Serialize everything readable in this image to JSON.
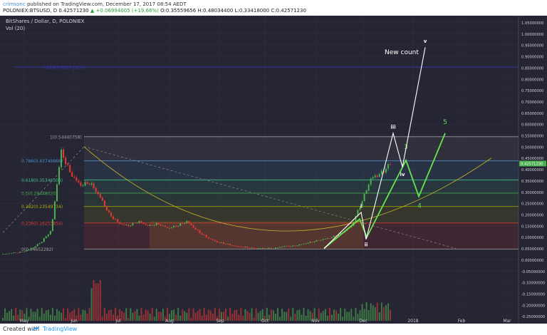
{
  "header": {
    "username": "crimsonc",
    "publish_text": "published on TradingView.com, December 17, 2017 08:54 AEDT",
    "ohlc_prefix": "POLONIEX:BTSUSD, D",
    "ohlc_open": "0.42571230",
    "ohlc_change": "▲ +0.06994005 (+19.66%)",
    "ohlc_rest": "O:0.35559656 H:0.48034400 L:0.33418000 C:0.42571230"
  },
  "chart_data": {
    "type": "candlestick",
    "symbol_label": "BitShares / Dollar, D, POLONIEX",
    "volume_label": "Vol (20)",
    "y_ticks": [
      "1.05000000",
      "1.00000000",
      "0.95000000",
      "0.90000000",
      "0.85000000",
      "0.80000000",
      "0.75000000",
      "0.70000000",
      "0.65000000",
      "0.60000000",
      "0.55000000",
      "0.50000000",
      "0.45000000",
      "0.40000000",
      "0.35000000",
      "0.30000000",
      "0.25000000",
      "0.20000000",
      "0.15000000",
      "0.10000000",
      "0.05000000",
      "0.00000000",
      "-0.05000000",
      "-0.10000000",
      "-0.15000000",
      "-0.20000000",
      "-0.25000000"
    ],
    "x_ticks": [
      "May",
      "Jun",
      "Jul",
      "Aug",
      "Sep",
      "Oct",
      "Nov",
      "Dec",
      "2018",
      "Feb",
      "Mar"
    ],
    "ylim": [
      -0.27,
      1.08
    ],
    "last_price": "0.42571230",
    "fib_levels": [
      {
        "label": "1.618(0.85271321)",
        "value": 0.8527,
        "color": "#3535b8"
      },
      {
        "label": "1(0.54440758)",
        "value": 0.5444,
        "color": "#9e9e9e"
      },
      {
        "label": "0.786(0.43749866)",
        "value": 0.4375,
        "color": "#4a90c8"
      },
      {
        "label": "0.618(0.35346306)",
        "value": 0.3535,
        "color": "#3fbf8a"
      },
      {
        "label": "0.5(0.29448020)",
        "value": 0.2945,
        "color": "#4caf50"
      },
      {
        "label": "0.382(0.23549734)",
        "value": 0.2355,
        "color": "#b0b000"
      },
      {
        "label": "0.236(0.16253854)",
        "value": 0.1625,
        "color": "#e53935"
      },
      {
        "label": "0(0.04652282)",
        "value": 0.0465,
        "color": "#9e9e9e"
      }
    ],
    "price_path_x": [
      0,
      1,
      2,
      3,
      4,
      5,
      6,
      7,
      8,
      9,
      10,
      11,
      12,
      13,
      14,
      15,
      16,
      17,
      18,
      19,
      20,
      21,
      22,
      23,
      24,
      25,
      26,
      27,
      28,
      29,
      30,
      31,
      32,
      33,
      34,
      35,
      36,
      37,
      38,
      39,
      40
    ],
    "price_path_close": [
      0.025,
      0.03,
      0.035,
      0.05,
      0.08,
      0.13,
      0.48,
      0.38,
      0.33,
      0.34,
      0.28,
      0.2,
      0.16,
      0.15,
      0.17,
      0.15,
      0.16,
      0.14,
      0.15,
      0.17,
      0.13,
      0.1,
      0.08,
      0.07,
      0.06,
      0.055,
      0.05,
      0.05,
      0.05,
      0.06,
      0.06,
      0.07,
      0.08,
      0.09,
      0.1,
      0.12,
      0.15,
      0.25,
      0.36,
      0.38,
      0.425
    ],
    "white_count": {
      "labels": [
        "i",
        "ii",
        "iii",
        "iv",
        "v"
      ],
      "points": [
        {
          "x": "mid-Nov",
          "y": 0.05
        },
        {
          "x": "late-Nov",
          "y": 0.21
        },
        {
          "x": "early-Dec",
          "y": 0.09
        },
        {
          "x": "mid-Dec",
          "y": 0.56
        },
        {
          "x": "late-Dec",
          "y": 0.41
        },
        {
          "x": "mid-Jan",
          "y": 0.94
        }
      ]
    },
    "green_count": {
      "labels": [
        "3",
        "4",
        "5"
      ],
      "points": [
        {
          "x": "mid-Nov",
          "y": 0.05
        },
        {
          "x": "late-Nov",
          "y": 0.18
        },
        {
          "x": "early-Dec",
          "y": 0.1
        },
        {
          "x": "late-Dec",
          "y": 0.44
        },
        {
          "x": "early-Jan",
          "y": 0.28
        },
        {
          "x": "late-Jan",
          "y": 0.56
        }
      ]
    },
    "annotation": "New count"
  },
  "footer": {
    "created_with": "Created with",
    "brand": "TradingView"
  }
}
